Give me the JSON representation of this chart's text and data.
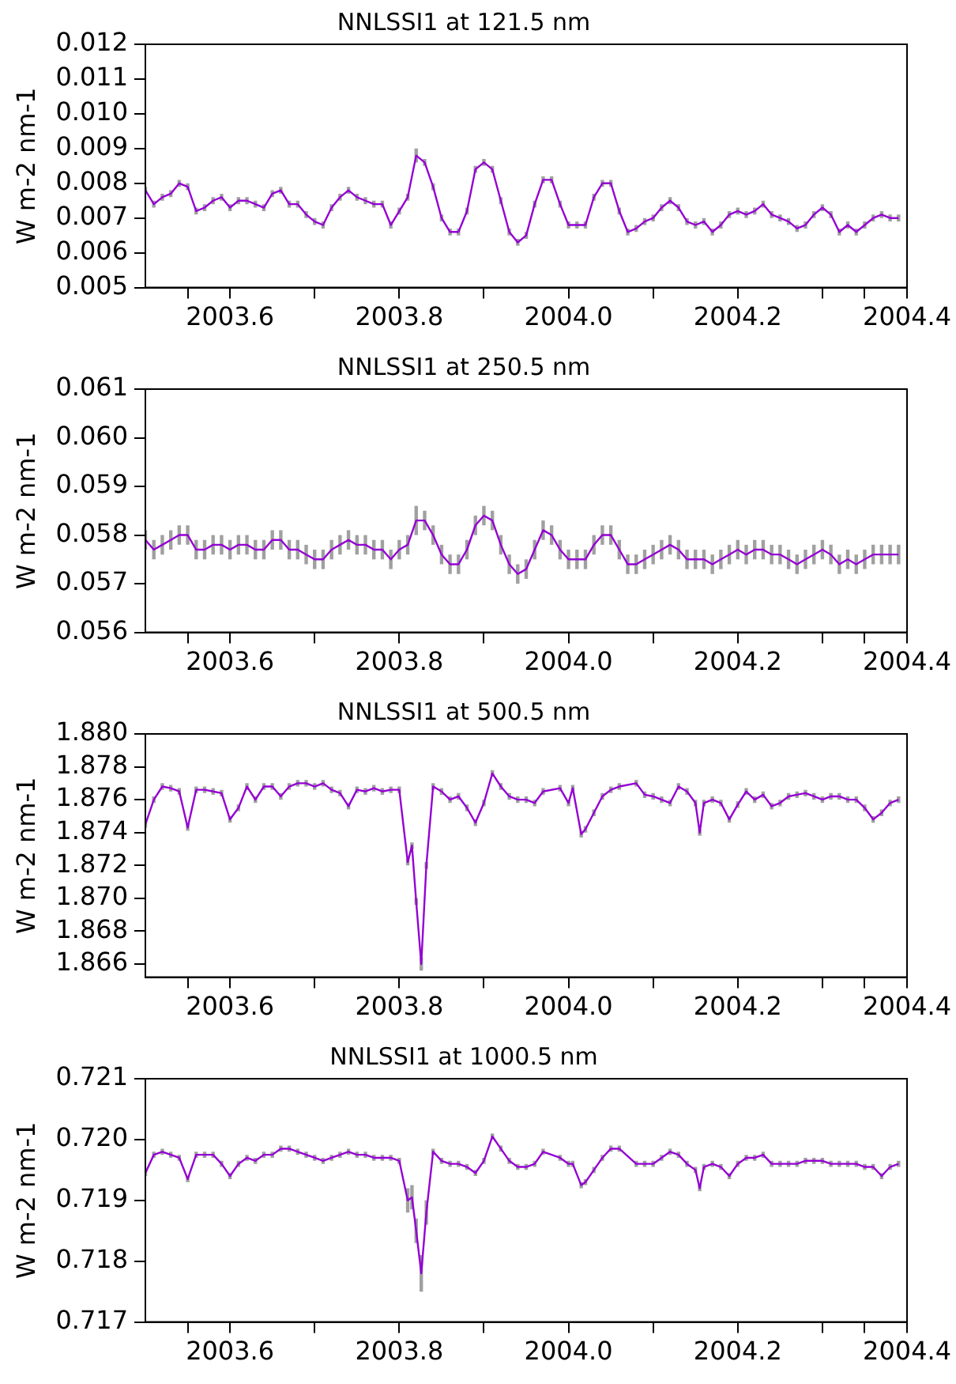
{
  "chart_data": [
    {
      "type": "line",
      "title": "NNLSSI1 at 121.5 nm",
      "ylabel": "W m-2 nm-1",
      "xlim": [
        2003.5,
        2004.4
      ],
      "ylim": [
        0.005,
        0.012
      ],
      "xticks": [
        {
          "value": 2003.55,
          "label": null
        },
        2003.6,
        {
          "value": 2003.7,
          "label": null
        },
        2003.8,
        {
          "value": 2003.9,
          "label": null
        },
        {
          "value": 2004,
          "label": "2004.0"
        },
        {
          "value": 2004.1,
          "label": null
        },
        2004.2,
        {
          "value": 2004.3,
          "label": null
        },
        {
          "value": 2004.35,
          "label": null
        },
        2004.4
      ],
      "yticks": [
        0.005,
        0.006,
        0.007,
        0.008,
        0.009,
        {
          "value": 0.01,
          "label": "0.010"
        },
        0.011,
        0.012
      ],
      "grid": false,
      "legend": false,
      "marker": "none",
      "line_style": "solid",
      "x": [
        2003.5,
        2003.51,
        2003.52,
        2003.53,
        2003.54,
        2003.55,
        2003.56,
        2003.57,
        2003.58,
        2003.59,
        2003.6,
        2003.61,
        2003.62,
        2003.63,
        2003.64,
        2003.65,
        2003.66,
        2003.67,
        2003.68,
        2003.69,
        2003.7,
        2003.71,
        2003.72,
        2003.73,
        2003.74,
        2003.75,
        2003.76,
        2003.77,
        2003.78,
        2003.79,
        2003.8,
        2003.81,
        2003.82,
        2003.83,
        2003.84,
        2003.85,
        2003.86,
        2003.87,
        2003.88,
        2003.89,
        2003.9,
        2003.91,
        2003.92,
        2003.93,
        2003.94,
        2003.95,
        2003.96,
        2003.97,
        2003.98,
        2003.99,
        2004.0,
        2004.01,
        2004.02,
        2004.03,
        2004.04,
        2004.05,
        2004.06,
        2004.07,
        2004.08,
        2004.09,
        2004.1,
        2004.11,
        2004.12,
        2004.13,
        2004.14,
        2004.15,
        2004.16,
        2004.17,
        2004.18,
        2004.19,
        2004.2,
        2004.21,
        2004.22,
        2004.23,
        2004.24,
        2004.25,
        2004.26,
        2004.27,
        2004.28,
        2004.29,
        2004.3,
        2004.31,
        2004.32,
        2004.33,
        2004.34,
        2004.35,
        2004.36,
        2004.37,
        2004.38,
        2004.39
      ],
      "series": [
        {
          "color": "#9400d3",
          "values": [
            0.0078,
            0.0074,
            0.0076,
            0.0077,
            0.008,
            0.0079,
            0.0072,
            0.0073,
            0.0075,
            0.0076,
            0.0073,
            0.0075,
            0.0075,
            0.0074,
            0.0073,
            0.0077,
            0.0078,
            0.0074,
            0.0074,
            0.0071,
            0.0069,
            0.0068,
            0.0073,
            0.0076,
            0.0078,
            0.0076,
            0.0075,
            0.0074,
            0.0074,
            0.0068,
            0.0072,
            0.0076,
            0.0088,
            0.0086,
            0.0079,
            0.007,
            0.0066,
            0.0066,
            0.0072,
            0.0084,
            0.0086,
            0.0084,
            0.0075,
            0.0066,
            0.0063,
            0.0065,
            0.0074,
            0.0081,
            0.0081,
            0.0074,
            0.0068,
            0.0068,
            0.0068,
            0.0076,
            0.008,
            0.008,
            0.0072,
            0.0066,
            0.0067,
            0.0069,
            0.007,
            0.0073,
            0.0075,
            0.0073,
            0.0069,
            0.0068,
            0.0069,
            0.0066,
            0.0068,
            0.0071,
            0.0072,
            0.0071,
            0.0072,
            0.0074,
            0.0071,
            0.007,
            0.0069,
            0.0067,
            0.0068,
            0.0071,
            0.0073,
            0.0071,
            0.0066,
            0.0068,
            0.0066,
            0.0068,
            0.007,
            0.0071,
            0.007,
            0.007
          ],
          "errors": [
            0.0001,
            0.0001,
            0.0001,
            0.0001,
            0.0001,
            0.0001,
            0.0001,
            0.0001,
            0.0001,
            0.0001,
            0.0001,
            0.0001,
            0.0001,
            0.0001,
            0.0001,
            0.0001,
            0.0001,
            0.0001,
            0.0001,
            0.0001,
            0.0001,
            0.0001,
            0.0001,
            0.0001,
            0.0001,
            0.0001,
            0.0001,
            0.0001,
            0.0001,
            0.0001,
            0.0001,
            0.0001,
            0.0002,
            0.0001,
            0.0001,
            0.0001,
            0.0001,
            0.0001,
            0.0001,
            0.0001,
            0.0001,
            0.0001,
            0.0001,
            0.0001,
            0.0001,
            0.0001,
            0.0001,
            0.0001,
            0.0001,
            0.0001,
            0.0001,
            0.0001,
            0.0001,
            0.0001,
            0.0001,
            0.0001,
            0.0001,
            0.0001,
            0.0001,
            0.0001,
            0.0001,
            0.0001,
            0.0001,
            0.0001,
            0.0001,
            0.0001,
            0.0001,
            0.0001,
            0.0001,
            0.0001,
            0.0001,
            0.0001,
            0.0001,
            0.0001,
            0.0001,
            0.0001,
            0.0001,
            0.0001,
            0.0001,
            0.0001,
            0.0001,
            0.0001,
            0.0001,
            0.0001,
            0.0001,
            0.0001,
            0.0001,
            0.0001,
            0.0001,
            0.0001
          ]
        }
      ]
    },
    {
      "type": "line",
      "title": "NNLSSI1 at 250.5 nm",
      "ylabel": "W m-2 nm-1",
      "xlim": [
        2003.5,
        2004.4
      ],
      "ylim": [
        0.056,
        0.061
      ],
      "xticks": [
        {
          "value": 2003.55,
          "label": null
        },
        2003.6,
        {
          "value": 2003.7,
          "label": null
        },
        2003.8,
        {
          "value": 2003.9,
          "label": null
        },
        {
          "value": 2004,
          "label": "2004.0"
        },
        {
          "value": 2004.1,
          "label": null
        },
        2004.2,
        {
          "value": 2004.3,
          "label": null
        },
        {
          "value": 2004.35,
          "label": null
        },
        2004.4
      ],
      "yticks": [
        0.056,
        0.057,
        0.058,
        0.059,
        {
          "value": 0.06,
          "label": "0.060"
        },
        0.061
      ],
      "grid": false,
      "legend": false,
      "marker": "none",
      "line_style": "solid",
      "x": [
        2003.5,
        2003.51,
        2003.52,
        2003.53,
        2003.54,
        2003.55,
        2003.56,
        2003.57,
        2003.58,
        2003.59,
        2003.6,
        2003.61,
        2003.62,
        2003.63,
        2003.64,
        2003.65,
        2003.66,
        2003.67,
        2003.68,
        2003.69,
        2003.7,
        2003.71,
        2003.72,
        2003.73,
        2003.74,
        2003.75,
        2003.76,
        2003.77,
        2003.78,
        2003.79,
        2003.8,
        2003.81,
        2003.82,
        2003.83,
        2003.84,
        2003.85,
        2003.86,
        2003.87,
        2003.88,
        2003.89,
        2003.9,
        2003.91,
        2003.92,
        2003.93,
        2003.94,
        2003.95,
        2003.96,
        2003.97,
        2003.98,
        2003.99,
        2004.0,
        2004.01,
        2004.02,
        2004.03,
        2004.04,
        2004.05,
        2004.06,
        2004.07,
        2004.08,
        2004.09,
        2004.1,
        2004.11,
        2004.12,
        2004.13,
        2004.14,
        2004.15,
        2004.16,
        2004.17,
        2004.18,
        2004.19,
        2004.2,
        2004.21,
        2004.22,
        2004.23,
        2004.24,
        2004.25,
        2004.26,
        2004.27,
        2004.28,
        2004.29,
        2004.3,
        2004.31,
        2004.32,
        2004.33,
        2004.34,
        2004.35,
        2004.36,
        2004.37,
        2004.38,
        2004.39
      ],
      "series": [
        {
          "color": "#9400d3",
          "values": [
            0.0579,
            0.0577,
            0.0578,
            0.0579,
            0.058,
            0.058,
            0.0577,
            0.0577,
            0.0578,
            0.0578,
            0.0577,
            0.0578,
            0.0578,
            0.0577,
            0.0577,
            0.0579,
            0.0579,
            0.0577,
            0.0577,
            0.0576,
            0.0575,
            0.0575,
            0.0577,
            0.0578,
            0.0579,
            0.0578,
            0.0578,
            0.0577,
            0.0577,
            0.0575,
            0.0577,
            0.0578,
            0.0583,
            0.0583,
            0.058,
            0.0576,
            0.0574,
            0.0574,
            0.0577,
            0.0582,
            0.0584,
            0.0583,
            0.0578,
            0.0574,
            0.0572,
            0.0573,
            0.0577,
            0.0581,
            0.058,
            0.0577,
            0.0575,
            0.0575,
            0.0575,
            0.0578,
            0.058,
            0.058,
            0.0577,
            0.0574,
            0.0574,
            0.0575,
            0.0576,
            0.0577,
            0.0578,
            0.0577,
            0.0575,
            0.0575,
            0.0575,
            0.0574,
            0.0575,
            0.0576,
            0.0577,
            0.0576,
            0.0577,
            0.0577,
            0.0576,
            0.0576,
            0.0575,
            0.0574,
            0.0575,
            0.0576,
            0.0577,
            0.0576,
            0.0574,
            0.0575,
            0.0574,
            0.0575,
            0.0576,
            0.0576,
            0.0576,
            0.0576
          ],
          "errors": [
            0.0002,
            0.0002,
            0.0002,
            0.0002,
            0.0002,
            0.0002,
            0.0002,
            0.0002,
            0.0002,
            0.0002,
            0.0002,
            0.0002,
            0.0002,
            0.0002,
            0.0002,
            0.0002,
            0.0002,
            0.0002,
            0.0002,
            0.0002,
            0.0002,
            0.0002,
            0.0002,
            0.0002,
            0.0002,
            0.0002,
            0.0002,
            0.0002,
            0.0002,
            0.0002,
            0.0002,
            0.0002,
            0.0003,
            0.0002,
            0.0002,
            0.0002,
            0.0002,
            0.0002,
            0.0002,
            0.0002,
            0.0002,
            0.0002,
            0.0002,
            0.0002,
            0.0002,
            0.0002,
            0.0002,
            0.0002,
            0.0002,
            0.0002,
            0.0002,
            0.0002,
            0.0002,
            0.0002,
            0.0002,
            0.0002,
            0.0002,
            0.0002,
            0.0002,
            0.0002,
            0.0002,
            0.0002,
            0.0002,
            0.0002,
            0.0002,
            0.0002,
            0.0002,
            0.0002,
            0.0002,
            0.0002,
            0.0002,
            0.0002,
            0.0002,
            0.0002,
            0.0002,
            0.0002,
            0.0002,
            0.0002,
            0.0002,
            0.0002,
            0.0002,
            0.0002,
            0.0002,
            0.0002,
            0.0002,
            0.0002,
            0.0002,
            0.0002,
            0.0002,
            0.0002
          ]
        }
      ]
    },
    {
      "type": "line",
      "title": "NNLSSI1 at 500.5 nm",
      "ylabel": "W m-2 nm-1",
      "xlim": [
        2003.5,
        2004.4
      ],
      "ylim": [
        1.8652,
        1.88
      ],
      "xticks": [
        {
          "value": 2003.55,
          "label": null
        },
        2003.6,
        {
          "value": 2003.7,
          "label": null
        },
        2003.8,
        {
          "value": 2003.9,
          "label": null
        },
        {
          "value": 2004,
          "label": "2004.0"
        },
        {
          "value": 2004.1,
          "label": null
        },
        2004.2,
        {
          "value": 2004.3,
          "label": null
        },
        {
          "value": 2004.35,
          "label": null
        },
        2004.4
      ],
      "yticks": [
        1.866,
        1.868,
        {
          "value": 1.87,
          "label": "1.870"
        },
        1.872,
        1.874,
        1.876,
        1.878,
        {
          "value": 1.88,
          "label": "1.880"
        }
      ],
      "grid": false,
      "legend": false,
      "marker": "none",
      "line_style": "solid",
      "series": [
        {
          "color": "#9400d3",
          "x": [
            2003.5,
            2003.51,
            2003.52,
            2003.53,
            2003.54,
            2003.55,
            2003.56,
            2003.57,
            2003.58,
            2003.59,
            2003.6,
            2003.61,
            2003.62,
            2003.63,
            2003.64,
            2003.65,
            2003.66,
            2003.67,
            2003.68,
            2003.69,
            2003.7,
            2003.71,
            2003.72,
            2003.73,
            2003.74,
            2003.75,
            2003.76,
            2003.77,
            2003.78,
            2003.79,
            2003.8,
            2003.81,
            2003.815,
            2003.82,
            2003.826,
            2003.832,
            2003.84,
            2003.85,
            2003.86,
            2003.87,
            2003.88,
            2003.89,
            2003.9,
            2003.91,
            2003.92,
            2003.93,
            2003.94,
            2003.95,
            2003.96,
            2003.97,
            2003.99,
            2004.0,
            2004.005,
            2004.015,
            2004.02,
            2004.03,
            2004.04,
            2004.05,
            2004.06,
            2004.08,
            2004.09,
            2004.1,
            2004.11,
            2004.12,
            2004.13,
            2004.14,
            2004.15,
            2004.155,
            2004.16,
            2004.17,
            2004.18,
            2004.19,
            2004.2,
            2004.21,
            2004.22,
            2004.23,
            2004.24,
            2004.25,
            2004.26,
            2004.27,
            2004.28,
            2004.29,
            2004.3,
            2004.31,
            2004.32,
            2004.33,
            2004.34,
            2004.35,
            2004.36,
            2004.37,
            2004.38,
            2004.39
          ],
          "values": [
            1.8745,
            1.876,
            1.8768,
            1.8767,
            1.8765,
            1.8743,
            1.8766,
            1.8766,
            1.8765,
            1.8764,
            1.8748,
            1.8755,
            1.8768,
            1.876,
            1.8768,
            1.8768,
            1.8762,
            1.8768,
            1.877,
            1.877,
            1.8768,
            1.877,
            1.8766,
            1.8764,
            1.8756,
            1.8766,
            1.8765,
            1.8767,
            1.8765,
            1.8766,
            1.8766,
            1.8722,
            1.8732,
            1.8698,
            1.866,
            1.872,
            1.8768,
            1.8765,
            1.876,
            1.8762,
            1.8755,
            1.8746,
            1.8758,
            1.8776,
            1.8768,
            1.8762,
            1.876,
            1.876,
            1.8758,
            1.8765,
            1.8767,
            1.8758,
            1.8767,
            1.8739,
            1.8742,
            1.8752,
            1.8762,
            1.8766,
            1.8768,
            1.877,
            1.8763,
            1.8762,
            1.876,
            1.8758,
            1.8768,
            1.8765,
            1.8758,
            1.874,
            1.8758,
            1.876,
            1.8758,
            1.8748,
            1.8757,
            1.8765,
            1.876,
            1.8763,
            1.8756,
            1.8758,
            1.8762,
            1.8763,
            1.8764,
            1.8762,
            1.876,
            1.8762,
            1.8762,
            1.876,
            1.876,
            1.8755,
            1.8748,
            1.8752,
            1.8758,
            1.876
          ],
          "errors": [
            0.0002,
            0.0002,
            0.0002,
            0.0002,
            0.0002,
            0.0002,
            0.0002,
            0.0002,
            0.0002,
            0.0002,
            0.0002,
            0.0002,
            0.0002,
            0.0002,
            0.0002,
            0.0002,
            0.0002,
            0.0002,
            0.0002,
            0.0002,
            0.0002,
            0.0002,
            0.0002,
            0.0002,
            0.0002,
            0.0002,
            0.0002,
            0.0002,
            0.0002,
            0.0002,
            0.0002,
            0.0002,
            0.0002,
            0.0002,
            0.0004,
            0.0002,
            0.0002,
            0.0002,
            0.0002,
            0.0002,
            0.0002,
            0.0002,
            0.0002,
            0.0002,
            0.0002,
            0.0002,
            0.0002,
            0.0002,
            0.0002,
            0.0002,
            0.0002,
            0.0002,
            0.0002,
            0.0002,
            0.0002,
            0.0002,
            0.0002,
            0.0002,
            0.0002,
            0.0002,
            0.0002,
            0.0002,
            0.0002,
            0.0002,
            0.0002,
            0.0002,
            0.0002,
            0.0002,
            0.0002,
            0.0002,
            0.0002,
            0.0002,
            0.0002,
            0.0002,
            0.0002,
            0.0002,
            0.0002,
            0.0002,
            0.0002,
            0.0002,
            0.0002,
            0.0002,
            0.0002,
            0.0002,
            0.0002,
            0.0002,
            0.0002,
            0.0002,
            0.0002,
            0.0002,
            0.0002,
            0.0002
          ]
        }
      ]
    },
    {
      "type": "line",
      "title": "NNLSSI1 at 1000.5 nm",
      "ylabel": "W m-2 nm-1",
      "xlim": [
        2003.5,
        2004.4
      ],
      "ylim": [
        0.717,
        0.721
      ],
      "xticks": [
        {
          "value": 2003.55,
          "label": null
        },
        2003.6,
        {
          "value": 2003.7,
          "label": null
        },
        2003.8,
        {
          "value": 2003.9,
          "label": null
        },
        {
          "value": 2004,
          "label": "2004.0"
        },
        {
          "value": 2004.1,
          "label": null
        },
        2004.2,
        {
          "value": 2004.3,
          "label": null
        },
        {
          "value": 2004.35,
          "label": null
        },
        2004.4
      ],
      "yticks": [
        0.717,
        0.718,
        0.719,
        {
          "value": 0.72,
          "label": "0.720"
        },
        0.721
      ],
      "grid": false,
      "legend": false,
      "marker": "none",
      "line_style": "solid",
      "series": [
        {
          "color": "#9400d3",
          "x": [
            2003.5,
            2003.51,
            2003.52,
            2003.53,
            2003.54,
            2003.55,
            2003.56,
            2003.57,
            2003.58,
            2003.59,
            2003.6,
            2003.61,
            2003.62,
            2003.63,
            2003.64,
            2003.65,
            2003.66,
            2003.67,
            2003.68,
            2003.69,
            2003.7,
            2003.71,
            2003.72,
            2003.73,
            2003.74,
            2003.75,
            2003.76,
            2003.77,
            2003.78,
            2003.79,
            2003.8,
            2003.81,
            2003.815,
            2003.82,
            2003.826,
            2003.832,
            2003.84,
            2003.85,
            2003.86,
            2003.87,
            2003.88,
            2003.89,
            2003.9,
            2003.91,
            2003.92,
            2003.93,
            2003.94,
            2003.95,
            2003.96,
            2003.97,
            2003.99,
            2004.0,
            2004.005,
            2004.015,
            2004.02,
            2004.03,
            2004.04,
            2004.05,
            2004.06,
            2004.08,
            2004.09,
            2004.1,
            2004.11,
            2004.12,
            2004.13,
            2004.14,
            2004.15,
            2004.155,
            2004.16,
            2004.17,
            2004.18,
            2004.19,
            2004.2,
            2004.21,
            2004.22,
            2004.23,
            2004.24,
            2004.25,
            2004.26,
            2004.27,
            2004.28,
            2004.29,
            2004.3,
            2004.31,
            2004.32,
            2004.33,
            2004.34,
            2004.35,
            2004.36,
            2004.37,
            2004.38,
            2004.39
          ],
          "values": [
            0.71945,
            0.71975,
            0.7198,
            0.71975,
            0.7197,
            0.71935,
            0.71975,
            0.71975,
            0.71975,
            0.7196,
            0.7194,
            0.7196,
            0.7197,
            0.71965,
            0.71975,
            0.71975,
            0.71985,
            0.71985,
            0.7198,
            0.71975,
            0.7197,
            0.71965,
            0.7197,
            0.71975,
            0.7198,
            0.71975,
            0.71975,
            0.7197,
            0.7197,
            0.7197,
            0.71965,
            0.719,
            0.71905,
            0.7185,
            0.7178,
            0.7188,
            0.7198,
            0.71965,
            0.7196,
            0.7196,
            0.71955,
            0.71945,
            0.71965,
            0.72005,
            0.71985,
            0.71965,
            0.71955,
            0.71955,
            0.7196,
            0.7198,
            0.7197,
            0.7196,
            0.7196,
            0.71925,
            0.7193,
            0.7195,
            0.7197,
            0.71985,
            0.71985,
            0.7196,
            0.7196,
            0.7196,
            0.7197,
            0.7198,
            0.71975,
            0.7196,
            0.7195,
            0.7192,
            0.71955,
            0.7196,
            0.71955,
            0.7194,
            0.7196,
            0.7197,
            0.7197,
            0.71975,
            0.7196,
            0.7196,
            0.7196,
            0.7196,
            0.71965,
            0.71965,
            0.71965,
            0.7196,
            0.7196,
            0.7196,
            0.7196,
            0.71955,
            0.71955,
            0.7194,
            0.71955,
            0.7196
          ],
          "errors": [
            5e-05,
            5e-05,
            5e-05,
            5e-05,
            5e-05,
            5e-05,
            5e-05,
            5e-05,
            5e-05,
            5e-05,
            5e-05,
            5e-05,
            5e-05,
            5e-05,
            5e-05,
            5e-05,
            5e-05,
            5e-05,
            5e-05,
            5e-05,
            5e-05,
            5e-05,
            5e-05,
            5e-05,
            5e-05,
            5e-05,
            5e-05,
            5e-05,
            5e-05,
            5e-05,
            5e-05,
            0.0002,
            0.0002,
            0.0002,
            0.0003,
            0.0002,
            5e-05,
            5e-05,
            5e-05,
            5e-05,
            5e-05,
            5e-05,
            5e-05,
            5e-05,
            5e-05,
            5e-05,
            5e-05,
            5e-05,
            5e-05,
            5e-05,
            5e-05,
            5e-05,
            5e-05,
            5e-05,
            5e-05,
            5e-05,
            5e-05,
            5e-05,
            5e-05,
            5e-05,
            5e-05,
            5e-05,
            5e-05,
            5e-05,
            5e-05,
            5e-05,
            5e-05,
            5e-05,
            5e-05,
            5e-05,
            5e-05,
            5e-05,
            5e-05,
            5e-05,
            5e-05,
            5e-05,
            5e-05,
            5e-05,
            5e-05,
            5e-05,
            5e-05,
            5e-05,
            5e-05,
            5e-05,
            5e-05,
            5e-05,
            5e-05,
            5e-05,
            5e-05,
            5e-05,
            5e-05,
            5e-05
          ]
        }
      ]
    }
  ]
}
